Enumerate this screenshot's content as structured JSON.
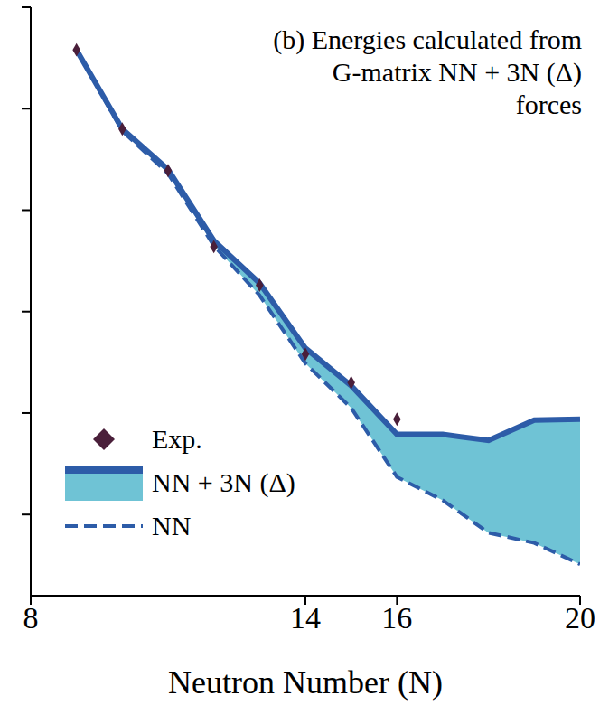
{
  "chart_data": {
    "type": "line",
    "title": "(b) Energies calculated from G-matrix NN + 3N (Δ) forces",
    "x_label": "Neutron Number (N)",
    "x": [
      9,
      10,
      11,
      12,
      13,
      14,
      15,
      16,
      17,
      18,
      19,
      20
    ],
    "series": [
      {
        "name": "Exp.",
        "type": "scatter",
        "marker": "diamond",
        "color": "#4a1f3a",
        "values": [
          -4.2,
          -12.0,
          -16.1,
          -23.6,
          -27.4,
          -34.2,
          -37.0,
          -40.6,
          null,
          null,
          null,
          null
        ]
      },
      {
        "name": "NN + 3N (Δ)",
        "type": "line",
        "line_style": "solid",
        "color": "#2d5ca8",
        "values": [
          -4.2,
          -12.0,
          -16.0,
          -23.0,
          -27.2,
          -33.6,
          -37.3,
          -42.1,
          -42.1,
          -42.7,
          -40.7,
          -40.6
        ]
      },
      {
        "name": "NN",
        "type": "line",
        "line_style": "dashed",
        "color": "#2d5ca8",
        "values": [
          -4.2,
          -12.2,
          -16.4,
          -23.5,
          -28.4,
          -35.1,
          -39.5,
          -46.3,
          -48.6,
          -51.8,
          -52.8,
          -54.9
        ]
      }
    ],
    "xlim": [
      8,
      20
    ],
    "xticks": [
      8,
      14,
      16,
      20
    ],
    "ylim": [
      -58,
      0
    ],
    "yticks": [
      -50,
      -40,
      -30,
      -20,
      -10,
      0
    ],
    "tick_labels": "x",
    "legend": "lower left"
  }
}
